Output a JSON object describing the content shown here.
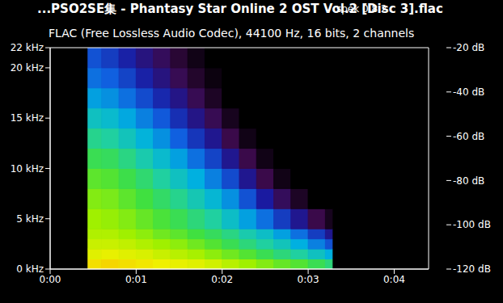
{
  "chart_data": {
    "type": "heatmap",
    "title": "...PSO2SE集 - Phantasy Star Online 2 OST Vol.2 [Disc 3].flac",
    "subtitle": "FLAC (Free Lossless Audio Codec), 44100 Hz, 16 bits, 2 channels",
    "annotations": [
      "spek 0.8.2"
    ],
    "grid": false,
    "xlim": [
      0,
      4.4
    ],
    "xticks": [
      {
        "value": 0,
        "label": "0:00"
      },
      {
        "value": 1,
        "label": "0:01"
      },
      {
        "value": 2,
        "label": "0:02"
      },
      {
        "value": 3,
        "label": "0:03"
      },
      {
        "value": 4,
        "label": "0:04"
      }
    ],
    "ylim": [
      0,
      22
    ],
    "yticks": [
      {
        "value": 0,
        "label": "0 kHz"
      },
      {
        "value": 5,
        "label": "5 kHz"
      },
      {
        "value": 10,
        "label": "10 kHz"
      },
      {
        "value": 15,
        "label": "15 kHz"
      },
      {
        "value": 20,
        "label": "20 kHz"
      },
      {
        "value": 22,
        "label": "22 kHz"
      }
    ],
    "x_edges": [
      0.44,
      0.6,
      0.8,
      1.0,
      1.2,
      1.4,
      1.6,
      1.8,
      2.0,
      2.2,
      2.4,
      2.6,
      2.8,
      3.0,
      3.2,
      3.28
    ],
    "y_edges": [
      0,
      1,
      2,
      3,
      4,
      6,
      8,
      10,
      12,
      14,
      16,
      18,
      20,
      22
    ],
    "cells": [
      [
        -38,
        -37,
        -38,
        -39,
        -40,
        -41,
        -42,
        -44,
        -47,
        -50,
        -53,
        -56,
        -58,
        -62,
        -66
      ],
      [
        -42,
        -41,
        -42,
        -43,
        -45,
        -47,
        -49,
        -52,
        -55,
        -58,
        -62,
        -66,
        -70,
        -75,
        -80
      ],
      [
        -45,
        -45,
        -46,
        -48,
        -50,
        -52,
        -55,
        -58,
        -62,
        -66,
        -70,
        -74,
        -80,
        -86,
        -92
      ],
      [
        -48,
        -48,
        -50,
        -52,
        -55,
        -57,
        -60,
        -63,
        -67,
        -72,
        -76,
        -82,
        -88,
        -95,
        -102
      ],
      [
        -50,
        -51,
        -53,
        -56,
        -59,
        -62,
        -66,
        -70,
        -76,
        -82,
        -88,
        -95,
        -102,
        -110,
        -116
      ],
      [
        -53,
        -54,
        -57,
        -60,
        -64,
        -68,
        -73,
        -78,
        -84,
        -92,
        -100,
        -108,
        -115,
        -120,
        -120
      ],
      [
        -57,
        -58,
        -61,
        -65,
        -70,
        -75,
        -80,
        -86,
        -93,
        -102,
        -110,
        -117,
        -120,
        -120,
        -120
      ],
      [
        -62,
        -63,
        -67,
        -72,
        -77,
        -82,
        -88,
        -94,
        -102,
        -110,
        -117,
        -120,
        -120,
        -120,
        -120
      ],
      [
        -68,
        -70,
        -74,
        -79,
        -84,
        -90,
        -96,
        -102,
        -110,
        -117,
        -120,
        -120,
        -120,
        -120,
        -120
      ],
      [
        -75,
        -77,
        -81,
        -86,
        -91,
        -97,
        -103,
        -109,
        -116,
        -120,
        -120,
        -120,
        -120,
        -120,
        -120
      ],
      [
        -82,
        -84,
        -88,
        -93,
        -98,
        -103,
        -109,
        -115,
        -120,
        -120,
        -120,
        -120,
        -120,
        -120,
        -120
      ],
      [
        -88,
        -90,
        -94,
        -99,
        -104,
        -109,
        -114,
        -118,
        -120,
        -120,
        -120,
        -120,
        -120,
        -120,
        -120
      ],
      [
        -92,
        -95,
        -99,
        -104,
        -108,
        -113,
        -117,
        -120,
        -120,
        -120,
        -120,
        -120,
        -120,
        -120,
        -120
      ]
    ],
    "colorbar": {
      "range": [
        -120,
        -20
      ],
      "ticks": [
        {
          "value": -20,
          "label": "-20 dB"
        },
        {
          "value": -40,
          "label": "-40 dB"
        },
        {
          "value": -60,
          "label": "-60 dB"
        },
        {
          "value": -80,
          "label": "-80 dB"
        },
        {
          "value": -100,
          "label": "-100 dB"
        },
        {
          "value": -120,
          "label": "-120 dB"
        }
      ]
    }
  }
}
